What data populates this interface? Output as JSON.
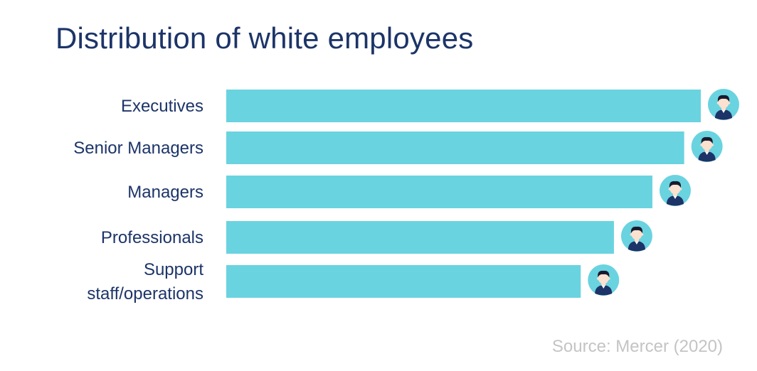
{
  "chart_data": {
    "type": "bar",
    "orientation": "horizontal",
    "title": "Distribution of white employees",
    "categories": [
      "Executives",
      "Senior Managers",
      "Managers",
      "Professionals",
      "Support staff/operations"
    ],
    "category_lines": [
      [
        "Executives"
      ],
      [
        "Senior Managers"
      ],
      [
        "Managers"
      ],
      [
        "Professionals"
      ],
      [
        "Support",
        "staff/operations"
      ]
    ],
    "values": [
      100,
      96.5,
      89.8,
      81.7,
      74.7
    ],
    "value_scale": "relative (axis not shown)",
    "xlim": [
      0,
      100
    ],
    "grid": false,
    "legend": "none",
    "marker_icon": "person-avatar-icon",
    "colors": {
      "bar": "#6ad3e0",
      "text": "#1c3468",
      "avatar_circle": "#6ad3e0",
      "avatar_skin": "#fbe1cf",
      "avatar_hair": "#1a1a2e",
      "avatar_shirt": "#1c3468"
    }
  },
  "source": "Source: Mercer (2020)"
}
